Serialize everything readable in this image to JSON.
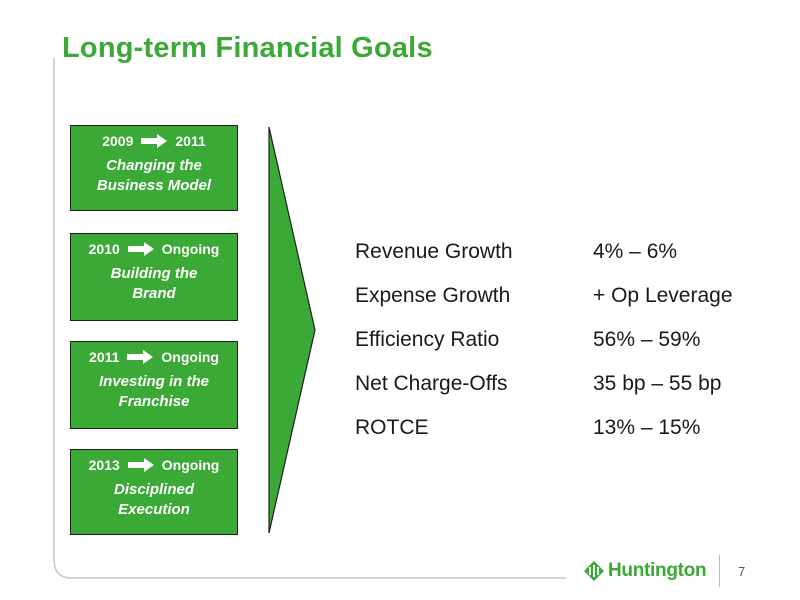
{
  "title": "Long-term Financial Goals",
  "phases": [
    {
      "start": "2009",
      "end": "2011",
      "desc_line1": "Changing the",
      "desc_line2": "Business Model"
    },
    {
      "start": "2010",
      "end": "Ongoing",
      "desc_line1": "Building the",
      "desc_line2": "Brand"
    },
    {
      "start": "2011",
      "end": "Ongoing",
      "desc_line1": "Investing in the",
      "desc_line2": "Franchise"
    },
    {
      "start": "2013",
      "end": "Ongoing",
      "desc_line1": "Disciplined",
      "desc_line2": "Execution"
    }
  ],
  "goals": [
    {
      "label": "Revenue Growth",
      "value": "4% – 6%"
    },
    {
      "label": "Expense Growth",
      "value": "+ Op Leverage"
    },
    {
      "label": "Efficiency Ratio",
      "value": "56% – 59%"
    },
    {
      "label": "Net Charge-Offs",
      "value": "35 bp – 55 bp"
    },
    {
      "label": "ROTCE",
      "value": "13% – 15%"
    }
  ],
  "logo": {
    "text": "Huntington",
    "icon": "huntington-logo-icon"
  },
  "page_number": "7",
  "colors": {
    "accent": "#3aa935",
    "text": "#1a1a1a",
    "frame": "#c8c8c8"
  },
  "icons": {
    "phase_arrow": "right-arrow-icon",
    "divider": "chevron-arrow-icon"
  }
}
